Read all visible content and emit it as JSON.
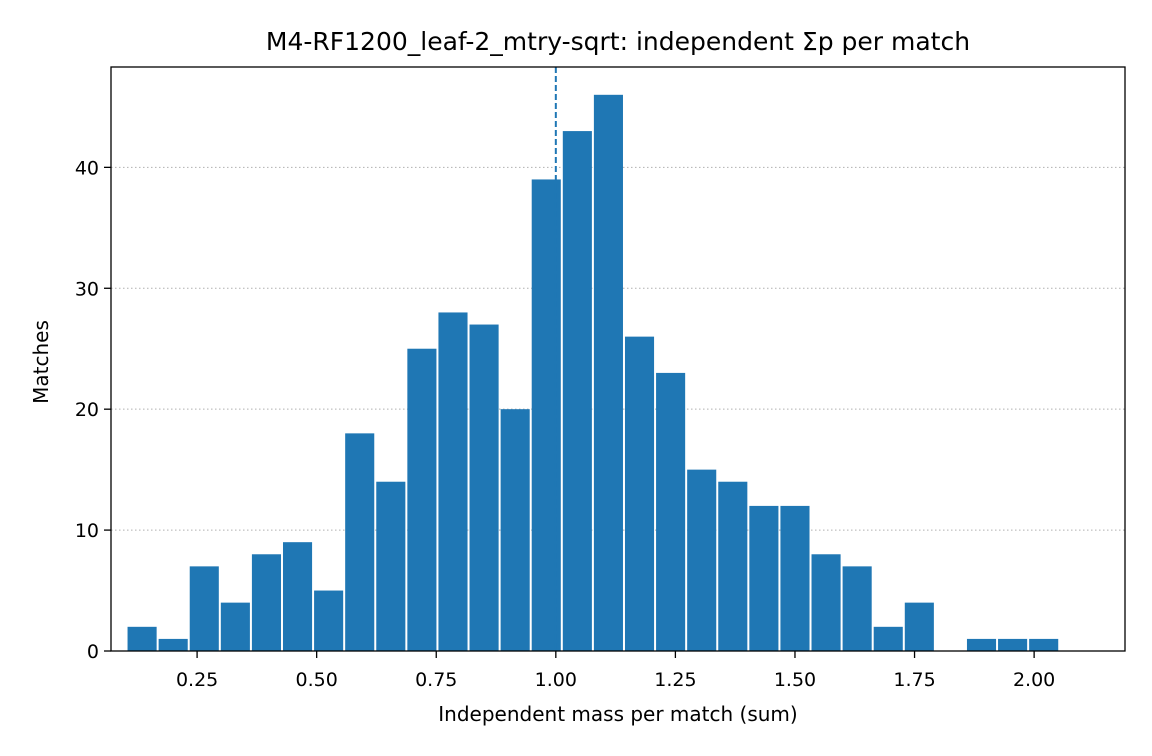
{
  "chart_data": {
    "type": "bar",
    "title": "M4-RF1200_leaf-2_mtry-sqrt: independent Σp per match",
    "xlabel": "Independent mass per match (sum)",
    "ylabel": "Matches",
    "bin_width": 0.065,
    "x": [
      0.135,
      0.2,
      0.265,
      0.33,
      0.395,
      0.46,
      0.525,
      0.59,
      0.655,
      0.72,
      0.785,
      0.85,
      0.915,
      0.98,
      1.045,
      1.11,
      1.175,
      1.24,
      1.305,
      1.37,
      1.435,
      1.5,
      1.565,
      1.63,
      1.695,
      1.76,
      1.825,
      1.89,
      1.955,
      2.02
    ],
    "values": [
      2,
      1,
      7,
      4,
      8,
      9,
      5,
      18,
      14,
      25,
      28,
      27,
      20,
      39,
      43,
      46,
      26,
      23,
      15,
      14,
      12,
      12,
      8,
      7,
      2,
      4,
      0,
      1,
      1,
      1
    ],
    "xlim": [
      0.07,
      2.19
    ],
    "ylim": [
      0,
      48.3
    ],
    "xticks": [
      0.25,
      0.5,
      0.75,
      1.0,
      1.25,
      1.5,
      1.75,
      2.0
    ],
    "xtick_labels": [
      "0.25",
      "0.50",
      "0.75",
      "1.00",
      "1.25",
      "1.50",
      "1.75",
      "2.00"
    ],
    "yticks": [
      0,
      10,
      20,
      30,
      40
    ],
    "ytick_labels": [
      "0",
      "10",
      "20",
      "30",
      "40"
    ],
    "grid": "y-dotted",
    "reference_line_x": 1.0,
    "bar_color": "#1f77b4"
  }
}
